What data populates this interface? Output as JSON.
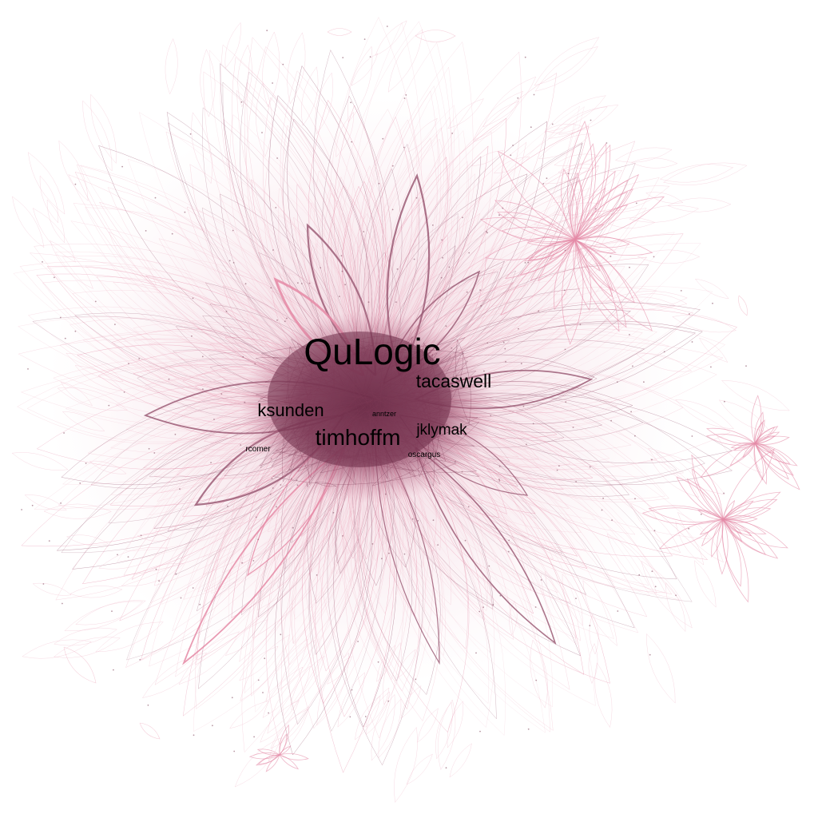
{
  "graph": {
    "colors": {
      "background": "#ffffff",
      "core_edge": "#7d3a55",
      "core_fill": "#6e2e48",
      "pink_edge": "#e58aa6",
      "mauve_edge": "#9c5d77",
      "light_edge": "#f2c2d0",
      "label": "#000000"
    },
    "nodes": [
      {
        "label": "QuLogic",
        "weight": 1.0
      },
      {
        "label": "tacaswell",
        "weight": 0.55
      },
      {
        "label": "timhoffm",
        "weight": 0.6
      },
      {
        "label": "ksunden",
        "weight": 0.5
      },
      {
        "label": "jklymak",
        "weight": 0.45
      },
      {
        "label": "anntzer",
        "weight": 0.2
      },
      {
        "label": "oscargus",
        "weight": 0.2
      },
      {
        "label": "rcomer",
        "weight": 0.2
      }
    ]
  }
}
